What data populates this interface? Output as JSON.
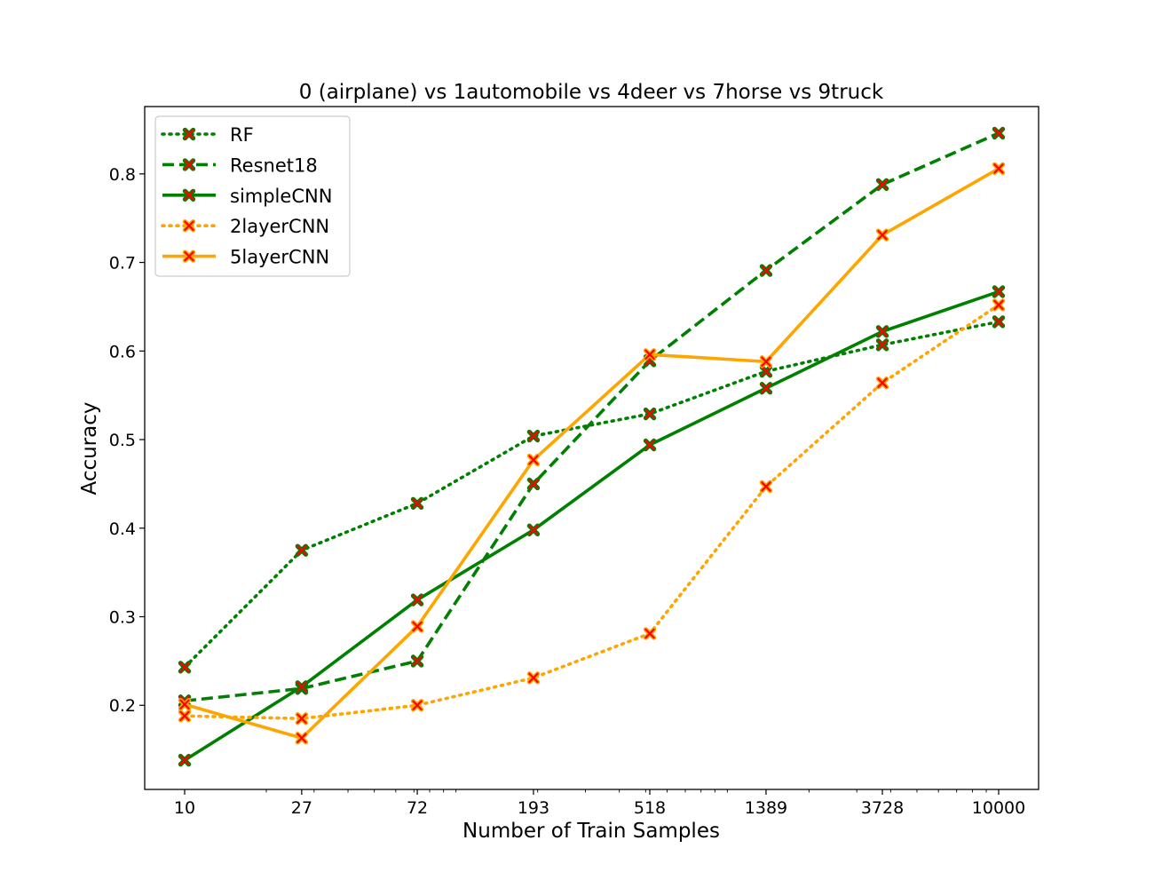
{
  "chart_data": {
    "type": "line",
    "title": "0 (airplane)  vs 1automobile vs 4deer vs 7horse vs 9truck",
    "xlabel": "Number of Train Samples",
    "ylabel": "Accuracy",
    "x_scale": "log",
    "x": [
      10,
      27,
      72,
      193,
      518,
      1389,
      3728,
      10000
    ],
    "x_tick_labels": [
      "10",
      "27",
      "72",
      "193",
      "518",
      "1389",
      "3728",
      "10000"
    ],
    "y_ticks": [
      0.2,
      0.3,
      0.4,
      0.5,
      0.6,
      0.7,
      0.8
    ],
    "y_tick_labels": [
      "0.2",
      "0.3",
      "0.4",
      "0.5",
      "0.6",
      "0.7",
      "0.8"
    ],
    "ylim": [
      0.105,
      0.876
    ],
    "grid": false,
    "legend_position": "top-left",
    "marker": "x-filled",
    "marker_face_color": "#ff0000",
    "series": [
      {
        "name": "RF",
        "color": "#008000",
        "linestyle": "dotted",
        "values": [
          0.243,
          0.375,
          0.428,
          0.504,
          0.529,
          0.577,
          0.607,
          0.633
        ]
      },
      {
        "name": "Resnet18",
        "color": "#008000",
        "linestyle": "dashed",
        "values": [
          0.205,
          0.219,
          0.25,
          0.45,
          0.589,
          0.691,
          0.788,
          0.846
        ]
      },
      {
        "name": "simpleCNN",
        "color": "#008000",
        "linestyle": "solid",
        "values": [
          0.138,
          0.221,
          0.319,
          0.398,
          0.494,
          0.558,
          0.622,
          0.667
        ]
      },
      {
        "name": "2layerCNN",
        "color": "#ffa500",
        "linestyle": "dotted",
        "values": [
          0.188,
          0.185,
          0.2,
          0.231,
          0.281,
          0.447,
          0.564,
          0.652
        ]
      },
      {
        "name": "5layerCNN",
        "color": "#ffa500",
        "linestyle": "solid",
        "values": [
          0.201,
          0.163,
          0.289,
          0.477,
          0.596,
          0.588,
          0.731,
          0.806
        ]
      }
    ]
  }
}
